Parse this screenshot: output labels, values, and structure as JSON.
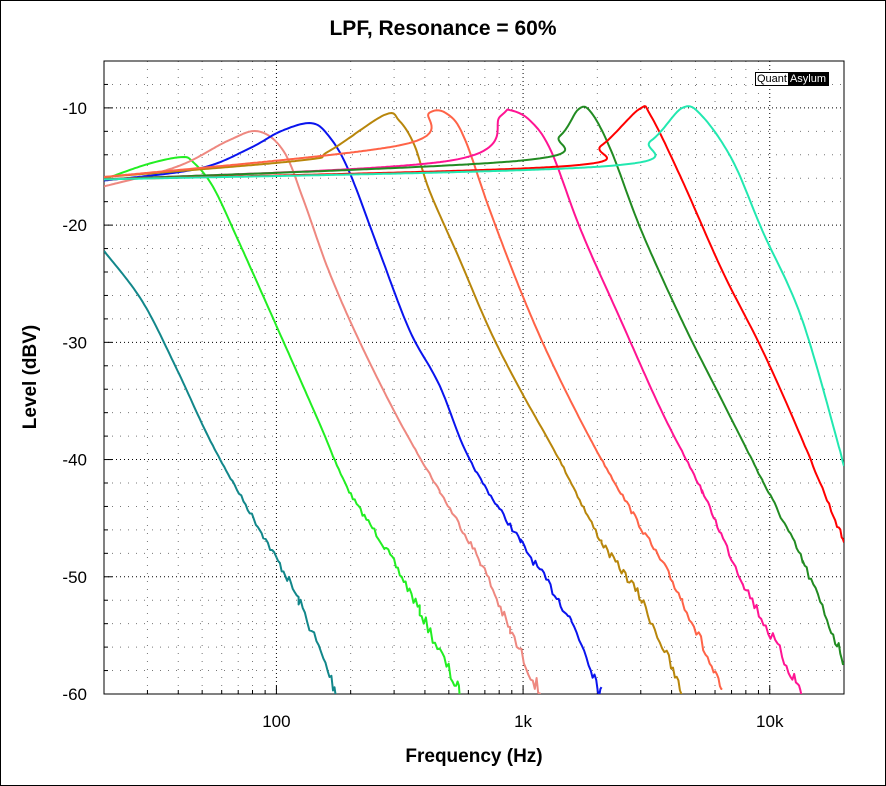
{
  "chart_data": {
    "type": "line",
    "title": "LPF, Resonance = 60%",
    "xlabel": "Frequency (Hz)",
    "ylabel": "Level (dBV)",
    "xscale": "log",
    "xlim": [
      20,
      20000
    ],
    "ylim": [
      -60,
      -6
    ],
    "x_ticks": [
      {
        "value": 100,
        "label": "100"
      },
      {
        "value": 1000,
        "label": "1k"
      },
      {
        "value": 10000,
        "label": "10k"
      }
    ],
    "y_ticks": [
      {
        "value": -10,
        "label": "-10"
      },
      {
        "value": -20,
        "label": "-20"
      },
      {
        "value": -30,
        "label": "-30"
      },
      {
        "value": -40,
        "label": "-40"
      },
      {
        "value": -50,
        "label": "-50"
      },
      {
        "value": -60,
        "label": "-60"
      }
    ],
    "grid": true,
    "logo": {
      "part1": "Quant",
      "part2": "Asylum"
    },
    "series": [
      {
        "name": "teal",
        "color": "#12878a",
        "points": [
          [
            20,
            -22.2
          ],
          [
            28.6,
            -26.5
          ],
          [
            39.7,
            -32.4
          ],
          [
            55.2,
            -38.8
          ],
          [
            88.5,
            -46.5
          ],
          [
            123,
            -52
          ],
          [
            176,
            -60
          ]
        ]
      },
      {
        "name": "lime",
        "color": "#22ee22",
        "points": [
          [
            20,
            -16.1
          ],
          [
            30,
            -14.8
          ],
          [
            41,
            -14.2
          ],
          [
            45.8,
            -14.6
          ],
          [
            55.2,
            -16.7
          ],
          [
            70,
            -21.3
          ],
          [
            102,
            -29
          ],
          [
            148,
            -36.7
          ],
          [
            197,
            -42.7
          ],
          [
            274,
            -47.4
          ],
          [
            381,
            -52.9
          ],
          [
            555,
            -60
          ]
        ]
      },
      {
        "name": "salmon",
        "color": "#ee8880",
        "points": [
          [
            20,
            -16.7
          ],
          [
            39.7,
            -15
          ],
          [
            63.7,
            -12.8
          ],
          [
            84.4,
            -12
          ],
          [
            107,
            -13.7
          ],
          [
            129,
            -17.9
          ],
          [
            163,
            -23.9
          ],
          [
            217,
            -29.9
          ],
          [
            315,
            -36.7
          ],
          [
            459,
            -42.7
          ],
          [
            670,
            -48.7
          ],
          [
            886,
            -54.6
          ],
          [
            1180,
            -60
          ]
        ]
      },
      {
        "name": "blue",
        "color": "#0a14ee",
        "points": [
          [
            20,
            -16.2
          ],
          [
            48,
            -15.2
          ],
          [
            77,
            -13.5
          ],
          [
            104,
            -12
          ],
          [
            138,
            -11.3
          ],
          [
            163,
            -12.4
          ],
          [
            197,
            -15.4
          ],
          [
            261,
            -22.2
          ],
          [
            347,
            -29
          ],
          [
            459,
            -33.7
          ],
          [
            610,
            -40.1
          ],
          [
            977,
            -47
          ],
          [
            1570,
            -53.8
          ],
          [
            2080,
            -60
          ]
        ]
      },
      {
        "name": "goldenrod",
        "color": "#b8860b",
        "points": [
          [
            20,
            -15.9
          ],
          [
            123,
            -14.5
          ],
          [
            163,
            -13.7
          ],
          [
            274,
            -10.6
          ],
          [
            315,
            -11.1
          ],
          [
            363,
            -13.2
          ],
          [
            418,
            -17.1
          ],
          [
            555,
            -23
          ],
          [
            735,
            -29
          ],
          [
            977,
            -34.1
          ],
          [
            1410,
            -40.1
          ],
          [
            2080,
            -47
          ],
          [
            3020,
            -52
          ],
          [
            4420,
            -60
          ]
        ]
      },
      {
        "name": "tomato",
        "color": "#ff6347",
        "points": [
          [
            20,
            -15.9
          ],
          [
            315,
            -13.2
          ],
          [
            418,
            -10.4
          ],
          [
            506,
            -10.7
          ],
          [
            584,
            -12.8
          ],
          [
            735,
            -18.8
          ],
          [
            977,
            -25.6
          ],
          [
            1300,
            -31.6
          ],
          [
            1890,
            -38.4
          ],
          [
            2750,
            -44.4
          ],
          [
            4420,
            -52
          ],
          [
            6420,
            -60
          ]
        ]
      },
      {
        "name": "deeppink",
        "color": "#ff1493",
        "points": [
          [
            20,
            -16.1
          ],
          [
            506,
            -14.5
          ],
          [
            810,
            -10.7
          ],
          [
            886,
            -10.2
          ],
          [
            1070,
            -11.1
          ],
          [
            1300,
            -13.7
          ],
          [
            1720,
            -20.5
          ],
          [
            2500,
            -28.2
          ],
          [
            3650,
            -35.9
          ],
          [
            5320,
            -42.7
          ],
          [
            7770,
            -50.4
          ],
          [
            13600,
            -60
          ]
        ]
      },
      {
        "name": "forestgreen",
        "color": "#228b22",
        "points": [
          [
            20,
            -16.1
          ],
          [
            977,
            -14.5
          ],
          [
            1410,
            -12.4
          ],
          [
            1680,
            -10.1
          ],
          [
            1890,
            -10.4
          ],
          [
            2280,
            -13.7
          ],
          [
            3020,
            -20.5
          ],
          [
            4420,
            -28.2
          ],
          [
            6420,
            -35
          ],
          [
            9350,
            -41.8
          ],
          [
            13600,
            -48.7
          ],
          [
            20000,
            -57.2
          ]
        ]
      },
      {
        "name": "red",
        "color": "#ff0000",
        "points": [
          [
            20,
            -16.1
          ],
          [
            1410,
            -15
          ],
          [
            2080,
            -13.2
          ],
          [
            2960,
            -10.1
          ],
          [
            3300,
            -10.7
          ],
          [
            4420,
            -16.2
          ],
          [
            6420,
            -23.9
          ],
          [
            9350,
            -30.7
          ],
          [
            13600,
            -38.4
          ],
          [
            20000,
            -47
          ]
        ]
      },
      {
        "name": "aquamarine",
        "color": "#22e8b0",
        "points": [
          [
            20,
            -16.1
          ],
          [
            2080,
            -15
          ],
          [
            3300,
            -12.8
          ],
          [
            4420,
            -10
          ],
          [
            5320,
            -10.7
          ],
          [
            7070,
            -14.5
          ],
          [
            9350,
            -20.5
          ],
          [
            13600,
            -28.2
          ],
          [
            20000,
            -40.5
          ]
        ]
      }
    ]
  }
}
